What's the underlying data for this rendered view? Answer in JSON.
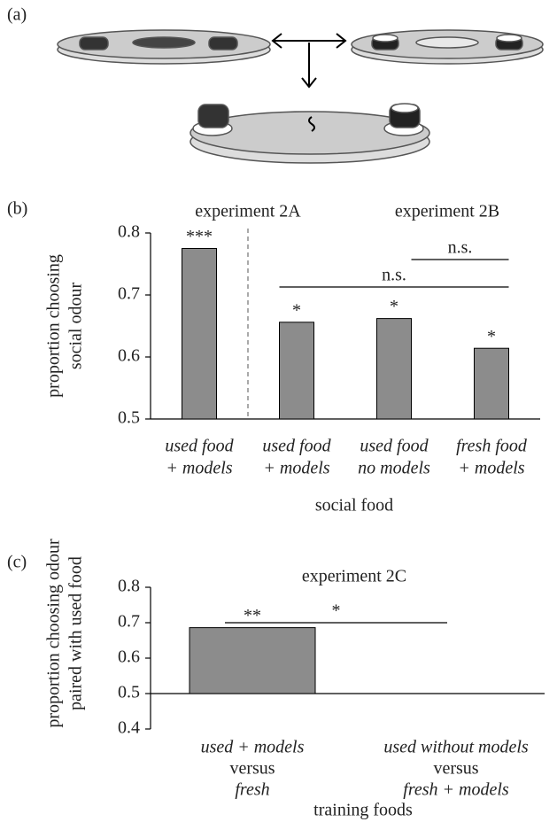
{
  "diagram": {
    "panel_label": "(a)"
  },
  "chart_data": [
    {
      "type": "bar",
      "panel_label": "(b)",
      "groups": [
        "experiment 2A",
        "experiment 2B"
      ],
      "categories": [
        [
          "used food",
          "+ models"
        ],
        [
          "used food",
          "+ models"
        ],
        [
          "used food",
          "no models"
        ],
        [
          "fresh food",
          "+ models"
        ]
      ],
      "category_line_styles": [
        "italic",
        "italic"
      ],
      "values": [
        0.775,
        0.656,
        0.662,
        0.614
      ],
      "color": "#8c8c8c",
      "ylabel": [
        "proportion choosing",
        "social odour"
      ],
      "xlabel": "social food",
      "ylim": [
        0.5,
        0.8
      ],
      "yticks": [
        0.5,
        0.6,
        0.7,
        0.8
      ],
      "bar_labels": [
        {
          "category": 0,
          "text": "***"
        },
        {
          "category": 1,
          "text": "*"
        },
        {
          "category": 2,
          "text": "*"
        },
        {
          "category": 3,
          "text": "*"
        }
      ],
      "brackets": [
        {
          "from": 1,
          "to": 3,
          "text": "n.s."
        },
        {
          "from": 2,
          "to": 3,
          "text": "n.s."
        }
      ]
    },
    {
      "type": "bar",
      "panel_label": "(c)",
      "groups": [
        "experiment 2C"
      ],
      "categories": [
        [
          "used + models",
          "versus",
          "fresh"
        ],
        [
          "used without models",
          "versus",
          "fresh + models"
        ]
      ],
      "category_line_styles": [
        "italic",
        "normal",
        "italic"
      ],
      "values": [
        0.686,
        0.5
      ],
      "color": "#8c8c8c",
      "baseline": 0.5,
      "ylabel": [
        "proportion choosing odour",
        "paired with used food"
      ],
      "xlabel": "training foods",
      "ylim": [
        0.4,
        0.8
      ],
      "yticks": [
        0.4,
        0.5,
        0.6,
        0.7,
        0.8
      ],
      "bar_labels": [
        {
          "category": 0,
          "text": "**"
        }
      ],
      "brackets": [
        {
          "from": 0,
          "to": 1,
          "text": "*"
        }
      ]
    }
  ]
}
